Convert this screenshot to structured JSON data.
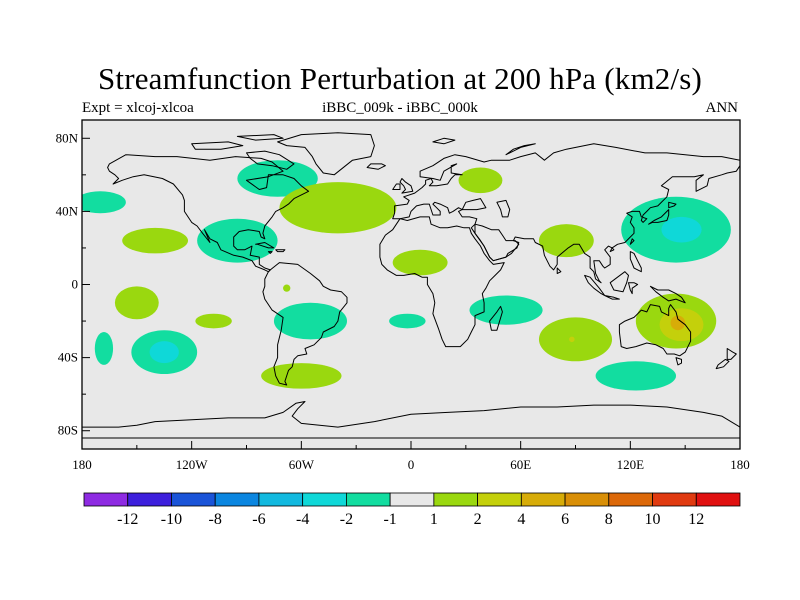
{
  "title": "Streamfunction Perturbation at 200 hPa (km2/s)",
  "subtitle_left": "Expt = xlcoj-xlcoa",
  "subtitle_center": "iBBC_009k - iBBC_000k",
  "subtitle_right": "ANN",
  "map": {
    "lon_range": [
      -180,
      180
    ],
    "lat_range": [
      -90,
      90
    ],
    "background_color": "#e8e8e8",
    "lat_ticks": [
      {
        "value": 80,
        "label": "80N"
      },
      {
        "value": 40,
        "label": "40N"
      },
      {
        "value": 0,
        "label": "0"
      },
      {
        "value": -40,
        "label": "40S"
      },
      {
        "value": -80,
        "label": "80S"
      }
    ],
    "lon_ticks": [
      {
        "value": -180,
        "label": "180"
      },
      {
        "value": -120,
        "label": "120W"
      },
      {
        "value": -60,
        "label": "60W"
      },
      {
        "value": 0,
        "label": "0"
      },
      {
        "value": 60,
        "label": "60E"
      },
      {
        "value": 120,
        "label": "120E"
      },
      {
        "value": 180,
        "label": "180"
      }
    ],
    "anomalies": [
      {
        "name": "n-atlantic-canada-neg",
        "lon": -73,
        "lat": 58,
        "rlon": 22,
        "rlat": 10,
        "level": "-1"
      },
      {
        "name": "ne-pacific-neg",
        "lon": -170,
        "lat": 45,
        "rlon": 14,
        "rlat": 6,
        "level": "-1"
      },
      {
        "name": "tropical-pacific-pos",
        "lon": -140,
        "lat": 24,
        "rlon": 18,
        "rlat": 7,
        "level": "1"
      },
      {
        "name": "mexico-neg",
        "lon": -95,
        "lat": 24,
        "rlon": 22,
        "rlat": 12,
        "level": "-1"
      },
      {
        "name": "n-atlantic-pos",
        "lon": -40,
        "lat": 42,
        "rlon": 32,
        "rlat": 14,
        "level": "1"
      },
      {
        "name": "russia-pos",
        "lon": 38,
        "lat": 57,
        "rlon": 12,
        "rlat": 7,
        "level": "1"
      },
      {
        "name": "sahara-pos",
        "lon": 5,
        "lat": 12,
        "rlon": 15,
        "rlat": 7,
        "level": "1"
      },
      {
        "name": "india-pos",
        "lon": 85,
        "lat": 24,
        "rlon": 15,
        "rlat": 9,
        "level": "1"
      },
      {
        "name": "japan-neg",
        "lon": 145,
        "lat": 30,
        "rlon": 30,
        "rlat": 18,
        "level": "-1"
      },
      {
        "name": "japan-core-neg2",
        "lon": 148,
        "lat": 30,
        "rlon": 11,
        "rlat": 7,
        "level": "-2"
      },
      {
        "name": "e-pacific-small-pos",
        "lon": -68,
        "lat": -2,
        "rlon": 2,
        "rlat": 2,
        "level": "1"
      },
      {
        "name": "s-pacific-pos-a",
        "lon": -150,
        "lat": -10,
        "rlon": 12,
        "rlat": 9,
        "level": "1"
      },
      {
        "name": "s-pacific-pos-b",
        "lon": -108,
        "lat": -20,
        "rlon": 10,
        "rlat": 4,
        "level": "1"
      },
      {
        "name": "s-pacific-neg",
        "lon": -135,
        "lat": -37,
        "rlon": 18,
        "rlat": 12,
        "level": "-1"
      },
      {
        "name": "s-pacific-core-neg2",
        "lon": -135,
        "lat": -37,
        "rlon": 8,
        "rlat": 6,
        "level": "-2"
      },
      {
        "name": "s-tip-pacific-neg",
        "lon": -168,
        "lat": -35,
        "rlon": 5,
        "rlat": 9,
        "level": "-1"
      },
      {
        "name": "s-america-neg",
        "lon": -55,
        "lat": -20,
        "rlon": 20,
        "rlat": 10,
        "level": "-1"
      },
      {
        "name": "s-atlantic-neg",
        "lon": -2,
        "lat": -20,
        "rlon": 10,
        "rlat": 4,
        "level": "-1"
      },
      {
        "name": "patagonia-pos",
        "lon": -60,
        "lat": -50,
        "rlon": 22,
        "rlat": 7,
        "level": "1"
      },
      {
        "name": "madagascar-neg",
        "lon": 52,
        "lat": -14,
        "rlon": 20,
        "rlat": 8,
        "level": "-1"
      },
      {
        "name": "indian-ocean-pos",
        "lon": 90,
        "lat": -30,
        "rlon": 20,
        "rlat": 12,
        "level": "1"
      },
      {
        "name": "indian-ocean-small",
        "lon": 88,
        "lat": -30,
        "rlon": 1.5,
        "rlat": 1.5,
        "level": "2"
      },
      {
        "name": "australia-pos",
        "lon": 145,
        "lat": -20,
        "rlon": 22,
        "rlat": 15,
        "level": "1"
      },
      {
        "name": "australia-core-pos2",
        "lon": 148,
        "lat": -22,
        "rlon": 12,
        "rlat": 9,
        "level": "2"
      },
      {
        "name": "australia-core-pos4",
        "lon": 146,
        "lat": -21,
        "rlon": 4,
        "rlat": 4,
        "level": "4"
      },
      {
        "name": "s-indian-neg",
        "lon": 123,
        "lat": -50,
        "rlon": 22,
        "rlat": 8,
        "level": "-1"
      }
    ]
  },
  "colorbar": {
    "colors": [
      "#8e2be2",
      "#3d1fdc",
      "#1a54d8",
      "#0b86e0",
      "#12b9df",
      "#0fd8d8",
      "#12dda0",
      "#e8e8e8",
      "#9ad80f",
      "#c4d00b",
      "#d7ac08",
      "#d98f07",
      "#dc6809",
      "#e03a10",
      "#e01010"
    ],
    "labels": [
      "-12",
      "-10",
      "-8",
      "-6",
      "-4",
      "-2",
      "-1",
      "1",
      "2",
      "4",
      "6",
      "8",
      "10",
      "12"
    ]
  }
}
